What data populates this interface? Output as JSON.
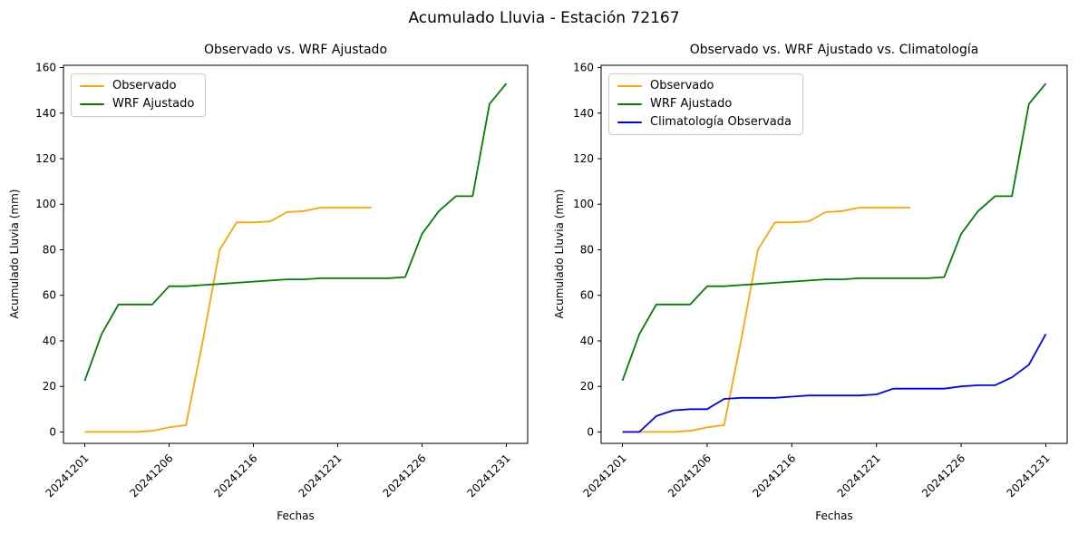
{
  "figure": {
    "title": "Acumulado Lluvia - Estación 72167"
  },
  "colors": {
    "observado": "#FFA500",
    "wrf_ajustado": "#008000",
    "climatologia": "#0000FF",
    "axis": "#000000",
    "legend_border": "#cccccc"
  },
  "chart_data": [
    {
      "type": "line",
      "title": "Observado vs. WRF Ajustado",
      "xlabel": "Fechas",
      "ylabel": "Acumulado Lluvia (mm)",
      "x": [
        "20241201",
        "20241202",
        "20241203",
        "20241204",
        "20241205",
        "20241206",
        "20241212",
        "20241213",
        "20241214",
        "20241215",
        "20241216",
        "20241217",
        "20241218",
        "20241219",
        "20241220",
        "20241221",
        "20241222",
        "20241223",
        "20241224",
        "20241225",
        "20241226",
        "20241227",
        "20241228",
        "20241229",
        "20241230",
        "20241231"
      ],
      "xtick_indices": [
        0,
        5,
        10,
        15,
        20,
        25
      ],
      "xtick_labels": [
        "20241201",
        "20241206",
        "20241216",
        "20241221",
        "20241226",
        "20241231"
      ],
      "yticks": [
        0,
        20,
        40,
        60,
        80,
        100,
        120,
        140,
        160
      ],
      "ylim": [
        -5,
        161
      ],
      "grid": false,
      "legend_position": "upper left",
      "series": [
        {
          "name": "Observado",
          "color": "#FFA500",
          "values": [
            0,
            0,
            0,
            0,
            0.5,
            2,
            3,
            40,
            80,
            92,
            92,
            92.5,
            96.5,
            97,
            98.5,
            98.5,
            98.5,
            98.5
          ]
        },
        {
          "name": "WRF Ajustado",
          "color": "#008000",
          "values": [
            22.5,
            43,
            56,
            56,
            56,
            64,
            64,
            64.5,
            65,
            65.5,
            66,
            66.5,
            67,
            67,
            67.5,
            67.5,
            67.5,
            67.5,
            67.5,
            68,
            87,
            97,
            103.5,
            103.5,
            144,
            153
          ]
        }
      ]
    },
    {
      "type": "line",
      "title": "Observado vs. WRF Ajustado vs. Climatología",
      "xlabel": "Fechas",
      "ylabel": "Acumulado Lluvia (mm)",
      "x": [
        "20241201",
        "20241202",
        "20241203",
        "20241204",
        "20241205",
        "20241206",
        "20241212",
        "20241213",
        "20241214",
        "20241215",
        "20241216",
        "20241217",
        "20241218",
        "20241219",
        "20241220",
        "20241221",
        "20241222",
        "20241223",
        "20241224",
        "20241225",
        "20241226",
        "20241227",
        "20241228",
        "20241229",
        "20241230",
        "20241231"
      ],
      "xtick_indices": [
        0,
        5,
        10,
        15,
        20,
        25
      ],
      "xtick_labels": [
        "20241201",
        "20241206",
        "20241216",
        "20241221",
        "20241226",
        "20241231"
      ],
      "yticks": [
        0,
        20,
        40,
        60,
        80,
        100,
        120,
        140,
        160
      ],
      "ylim": [
        -5,
        161
      ],
      "grid": false,
      "legend_position": "upper left",
      "series": [
        {
          "name": "Observado",
          "color": "#FFA500",
          "values": [
            0,
            0,
            0,
            0,
            0.5,
            2,
            3,
            40,
            80,
            92,
            92,
            92.5,
            96.5,
            97,
            98.5,
            98.5,
            98.5,
            98.5
          ]
        },
        {
          "name": "WRF Ajustado",
          "color": "#008000",
          "values": [
            22.5,
            43,
            56,
            56,
            56,
            64,
            64,
            64.5,
            65,
            65.5,
            66,
            66.5,
            67,
            67,
            67.5,
            67.5,
            67.5,
            67.5,
            67.5,
            68,
            87,
            97,
            103.5,
            103.5,
            144,
            153
          ]
        },
        {
          "name": "Climatología Observada",
          "color": "#0000FF",
          "values": [
            0,
            0,
            7,
            9.5,
            10,
            10,
            14.5,
            15,
            15,
            15,
            15.5,
            16,
            16,
            16,
            16,
            16.5,
            19,
            19,
            19,
            19,
            20,
            20.5,
            20.5,
            24,
            29.5,
            43
          ]
        }
      ]
    }
  ]
}
